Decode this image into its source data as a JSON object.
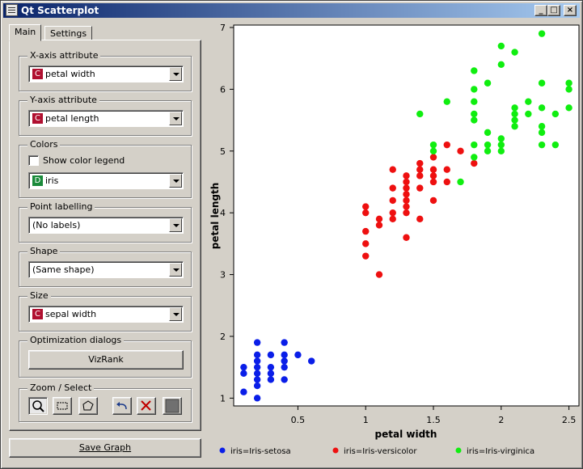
{
  "window": {
    "title": "Qt Scatterplot"
  },
  "tabs": [
    {
      "label": "Main"
    },
    {
      "label": "Settings"
    }
  ],
  "x_axis_group": {
    "title": "X-axis attribute",
    "badge": "C",
    "value": "petal width"
  },
  "y_axis_group": {
    "title": "Y-axis attribute",
    "badge": "C",
    "value": "petal length"
  },
  "colors_group": {
    "title": "Colors",
    "show_legend_label": "Show color legend",
    "badge": "D",
    "value": "iris"
  },
  "labelling_group": {
    "title": "Point labelling",
    "value": "(No labels)"
  },
  "shape_group": {
    "title": "Shape",
    "value": "(Same shape)"
  },
  "size_group": {
    "title": "Size",
    "badge": "C",
    "value": "sepal width"
  },
  "optimization_group": {
    "title": "Optimization dialogs",
    "button_label": "VizRank"
  },
  "zoom_group": {
    "title": "Zoom / Select"
  },
  "save_button": {
    "label": "Save Graph"
  },
  "colors": {
    "continuous_badge": "#b01030",
    "discrete_badge": "#1a8a3a",
    "setosa": "#0a1ee8",
    "versicolor": "#ee1010",
    "virginica": "#10ee10"
  },
  "chart_data": {
    "type": "scatter",
    "xlabel": "petal width",
    "ylabel": "petal length",
    "xlim": [
      0.05,
      2.55
    ],
    "ylim": [
      0.9,
      7.0
    ],
    "xticks": [
      "0.5",
      "1",
      "1.5",
      "2",
      "2.5"
    ],
    "yticks": [
      "1",
      "2",
      "3",
      "4",
      "5",
      "6",
      "7"
    ],
    "legend_position": "bottom",
    "series": [
      {
        "name": "iris=Iris-setosa",
        "color": "#0a1ee8",
        "points": [
          [
            0.1,
            1.1
          ],
          [
            0.1,
            1.4
          ],
          [
            0.1,
            1.5
          ],
          [
            0.2,
            1.0
          ],
          [
            0.2,
            1.2
          ],
          [
            0.2,
            1.3
          ],
          [
            0.2,
            1.4
          ],
          [
            0.2,
            1.5
          ],
          [
            0.2,
            1.6
          ],
          [
            0.2,
            1.7
          ],
          [
            0.2,
            1.9
          ],
          [
            0.3,
            1.3
          ],
          [
            0.3,
            1.4
          ],
          [
            0.3,
            1.5
          ],
          [
            0.3,
            1.7
          ],
          [
            0.4,
            1.3
          ],
          [
            0.4,
            1.5
          ],
          [
            0.4,
            1.6
          ],
          [
            0.4,
            1.7
          ],
          [
            0.4,
            1.9
          ],
          [
            0.5,
            1.7
          ],
          [
            0.6,
            1.6
          ]
        ]
      },
      {
        "name": "iris=Iris-versicolor",
        "color": "#ee1010",
        "points": [
          [
            1.0,
            3.3
          ],
          [
            1.0,
            3.5
          ],
          [
            1.0,
            3.7
          ],
          [
            1.0,
            4.0
          ],
          [
            1.0,
            4.1
          ],
          [
            1.1,
            3.0
          ],
          [
            1.1,
            3.8
          ],
          [
            1.1,
            3.9
          ],
          [
            1.2,
            3.9
          ],
          [
            1.2,
            4.0
          ],
          [
            1.2,
            4.2
          ],
          [
            1.2,
            4.4
          ],
          [
            1.2,
            4.7
          ],
          [
            1.3,
            3.6
          ],
          [
            1.3,
            4.0
          ],
          [
            1.3,
            4.1
          ],
          [
            1.3,
            4.2
          ],
          [
            1.3,
            4.3
          ],
          [
            1.3,
            4.4
          ],
          [
            1.3,
            4.5
          ],
          [
            1.3,
            4.6
          ],
          [
            1.4,
            3.9
          ],
          [
            1.4,
            4.4
          ],
          [
            1.4,
            4.6
          ],
          [
            1.4,
            4.7
          ],
          [
            1.4,
            4.8
          ],
          [
            1.5,
            4.2
          ],
          [
            1.5,
            4.5
          ],
          [
            1.5,
            4.6
          ],
          [
            1.5,
            4.7
          ],
          [
            1.5,
            4.9
          ],
          [
            1.6,
            4.5
          ],
          [
            1.6,
            4.7
          ],
          [
            1.6,
            5.1
          ],
          [
            1.7,
            5.0
          ],
          [
            1.8,
            4.8
          ]
        ]
      },
      {
        "name": "iris=Iris-virginica",
        "color": "#10ee10",
        "points": [
          [
            1.4,
            5.6
          ],
          [
            1.5,
            5.0
          ],
          [
            1.5,
            5.1
          ],
          [
            1.6,
            5.8
          ],
          [
            1.7,
            4.5
          ],
          [
            1.8,
            4.9
          ],
          [
            1.8,
            5.1
          ],
          [
            1.8,
            5.5
          ],
          [
            1.8,
            5.6
          ],
          [
            1.8,
            5.8
          ],
          [
            1.8,
            6.0
          ],
          [
            1.8,
            6.3
          ],
          [
            1.9,
            5.0
          ],
          [
            1.9,
            5.1
          ],
          [
            1.9,
            5.3
          ],
          [
            1.9,
            6.1
          ],
          [
            2.0,
            5.0
          ],
          [
            2.0,
            5.1
          ],
          [
            2.0,
            5.2
          ],
          [
            2.0,
            6.4
          ],
          [
            2.0,
            6.7
          ],
          [
            2.1,
            5.4
          ],
          [
            2.1,
            5.5
          ],
          [
            2.1,
            5.6
          ],
          [
            2.1,
            5.7
          ],
          [
            2.1,
            6.6
          ],
          [
            2.2,
            5.6
          ],
          [
            2.2,
            5.8
          ],
          [
            2.3,
            5.1
          ],
          [
            2.3,
            5.3
          ],
          [
            2.3,
            5.4
          ],
          [
            2.3,
            5.7
          ],
          [
            2.3,
            6.1
          ],
          [
            2.3,
            6.9
          ],
          [
            2.4,
            5.1
          ],
          [
            2.4,
            5.6
          ],
          [
            2.5,
            5.7
          ],
          [
            2.5,
            6.0
          ],
          [
            2.5,
            6.1
          ]
        ]
      }
    ]
  }
}
